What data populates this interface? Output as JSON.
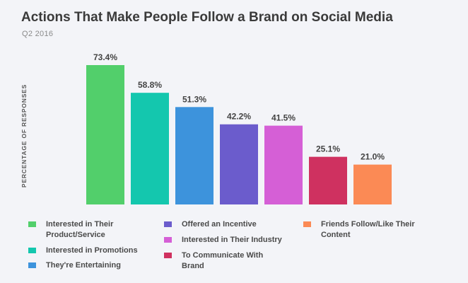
{
  "chart_data": {
    "type": "bar",
    "title": "Actions That Make People Follow a Brand on Social Media",
    "subtitle": "Q2 2016",
    "ylabel": "PERCENTAGE OF RESPONSES",
    "xlabel": "",
    "ylim": [
      0,
      80
    ],
    "grid": false,
    "legend_position": "bottom",
    "categories": [
      "Interested in Their Product/Service",
      "Interested in Promotions",
      "They're Entertaining",
      "Offered an Incentive",
      "Interested in Their Industry",
      "To Communicate With Brand",
      "Friends Follow/Like Their Content"
    ],
    "values": [
      73.4,
      58.8,
      51.3,
      42.2,
      41.5,
      25.1,
      21.0
    ],
    "value_labels": [
      "73.4%",
      "58.8%",
      "51.3%",
      "42.2%",
      "41.5%",
      "25.1%",
      "21.0%"
    ],
    "colors": [
      "#52cf6b",
      "#14c7ae",
      "#3d93dc",
      "#6b5ccc",
      "#d55fd6",
      "#cf3160",
      "#fb8a55"
    ]
  },
  "legend": [
    {
      "label_lines": [
        "Interested in Their",
        "Product/Service"
      ],
      "color": "#52cf6b"
    },
    {
      "label_lines": [
        "Interested in Promotions"
      ],
      "color": "#14c7ae"
    },
    {
      "label_lines": [
        "They're Entertaining"
      ],
      "color": "#3d93dc"
    },
    {
      "label_lines": [
        "Offered an Incentive"
      ],
      "color": "#6b5ccc"
    },
    {
      "label_lines": [
        "Interested in Their Industry"
      ],
      "color": "#d55fd6"
    },
    {
      "label_lines": [
        "To Communicate With",
        "Brand"
      ],
      "color": "#cf3160"
    },
    {
      "label_lines": [
        "Friends Follow/Like Their",
        "Content"
      ],
      "color": "#fb8a55"
    }
  ]
}
